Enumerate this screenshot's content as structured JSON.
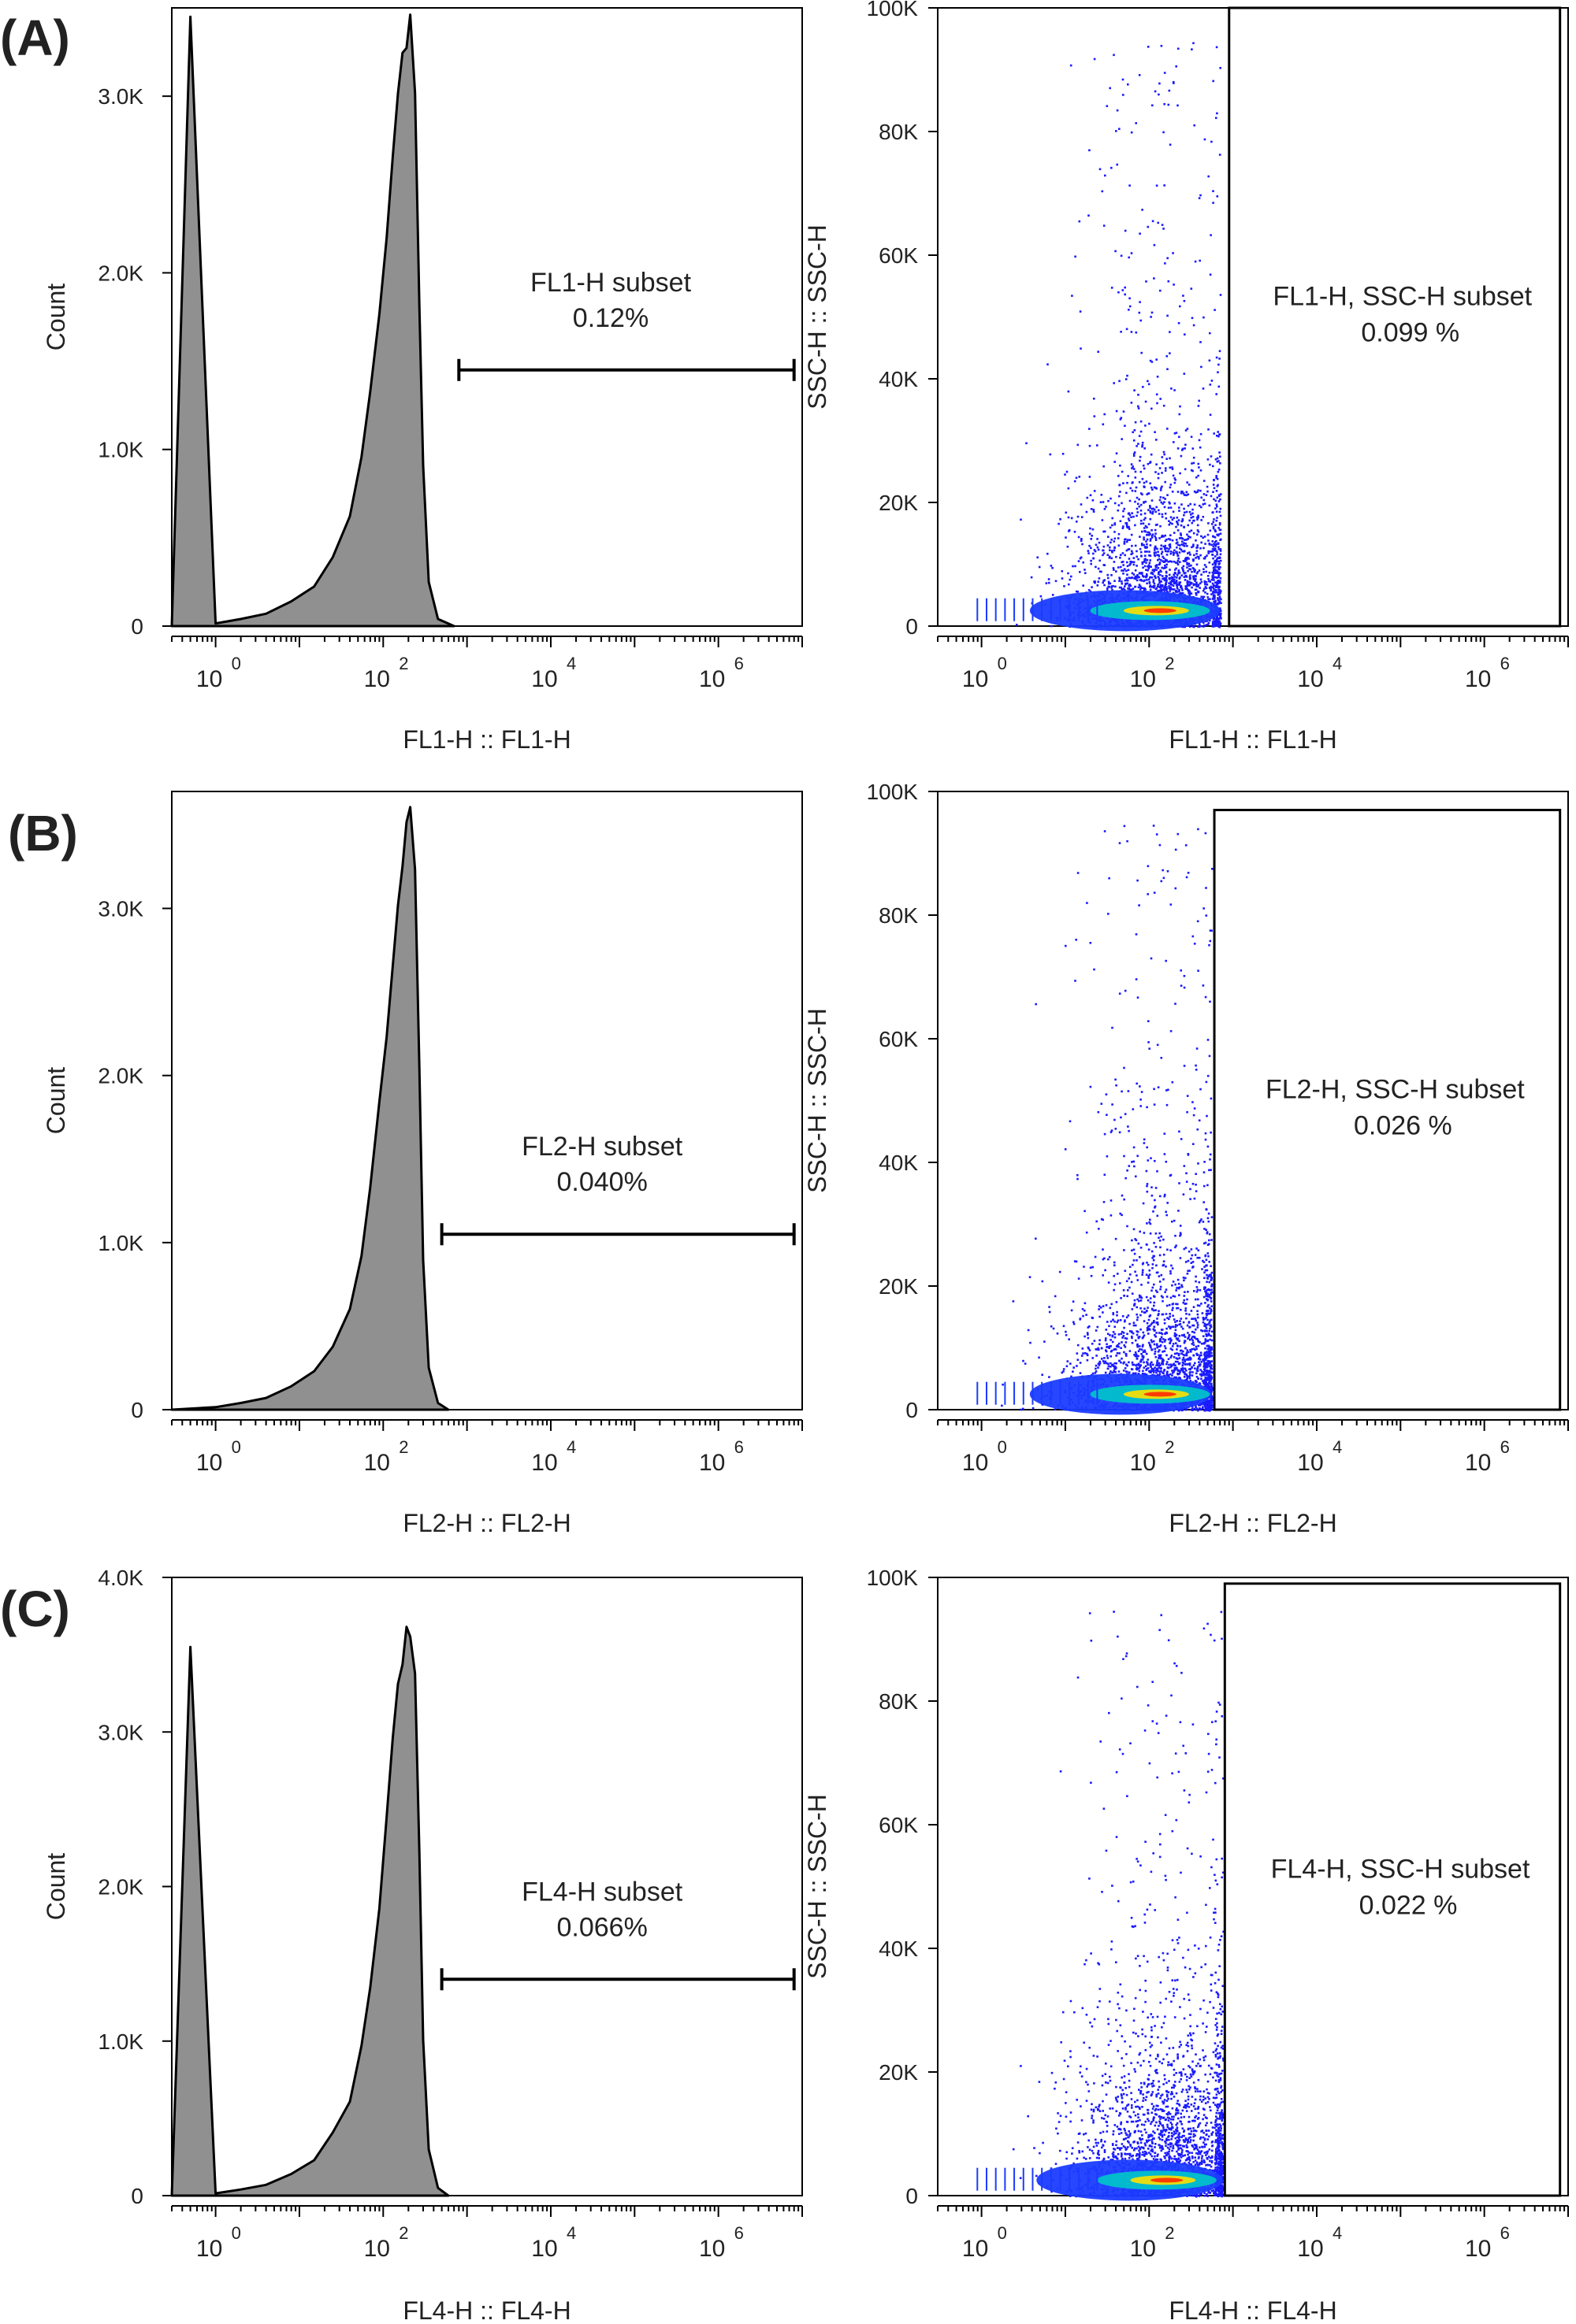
{
  "colors": {
    "histogram_fill": "#909090",
    "histogram_outline": "#000000",
    "scatter_point": "#1a1aff",
    "density_low": "#1b3cff",
    "density_mid": "#00c8c8",
    "density_high": "#ffe000",
    "density_peak": "#ff2a00",
    "frame": "#000000"
  },
  "chart_data": [
    {
      "panel": "(A)",
      "type": "area",
      "xlabel": "FL1-H :: FL1-H",
      "ylabel": "Count",
      "x_scale": "log10",
      "xlim": [
        0.3,
        10000000
      ],
      "ylim": [
        0,
        3500
      ],
      "yticks": [
        "0",
        "1.0K",
        "2.0K",
        "3.0K"
      ],
      "xticks": [
        {
          "base": "10",
          "exp": "0"
        },
        {
          "base": "10",
          "exp": "2"
        },
        {
          "base": "10",
          "exp": "4"
        },
        {
          "base": "10",
          "exp": "6"
        }
      ],
      "histogram": {
        "x": [
          0.5,
          1,
          2,
          4,
          8,
          15,
          25,
          40,
          55,
          70,
          90,
          110,
          130,
          150,
          170,
          190,
          210,
          240,
          270,
          300,
          350,
          450,
          700
        ],
        "y": [
          3450,
          15,
          40,
          70,
          140,
          230,
          400,
          620,
          950,
          1300,
          1800,
          2200,
          2650,
          3000,
          3200,
          3350,
          3420,
          2950,
          1850,
          900,
          250,
          40,
          0
        ]
      },
      "gate": {
        "name": "FL1-H subset",
        "percent": "0.12",
        "unit": "%",
        "range": [
          800,
          8000000
        ],
        "y": 1450
      }
    },
    {
      "panel": "(A)",
      "type": "scatter",
      "xlabel": "FL1-H :: FL1-H",
      "ylabel": "SSC-H :: SSC-H",
      "x_scale": "log10",
      "xlim": [
        0.3,
        10000000
      ],
      "ylim": [
        0,
        100000
      ],
      "yticks": [
        "0",
        "20K",
        "40K",
        "60K",
        "80K",
        "100K"
      ],
      "xticks": [
        {
          "base": "10",
          "exp": "0"
        },
        {
          "base": "10",
          "exp": "2"
        },
        {
          "base": "10",
          "exp": "4"
        },
        {
          "base": "10",
          "exp": "6"
        }
      ],
      "population": {
        "x_center": 150,
        "x_max": 700,
        "y_median": 6000
      },
      "gate": {
        "name": "FL1-H, SSC-H subset",
        "percent": "0.099",
        "unit": "%",
        "x_range": [
          900,
          8000000
        ],
        "y_range": [
          0,
          100000
        ]
      }
    },
    {
      "panel": "(B)",
      "type": "area",
      "xlabel": "FL2-H :: FL2-H",
      "ylabel": "Count",
      "x_scale": "log10",
      "xlim": [
        0.3,
        10000000
      ],
      "ylim": [
        0,
        3700
      ],
      "yticks": [
        "0",
        "1.0K",
        "2.0K",
        "3.0K"
      ],
      "xticks": [
        {
          "base": "10",
          "exp": "0"
        },
        {
          "base": "10",
          "exp": "2"
        },
        {
          "base": "10",
          "exp": "4"
        },
        {
          "base": "10",
          "exp": "6"
        }
      ],
      "histogram": {
        "x": [
          1,
          2,
          4,
          8,
          15,
          25,
          40,
          55,
          70,
          90,
          110,
          130,
          150,
          170,
          190,
          210,
          240,
          270,
          300,
          350,
          450,
          600
        ],
        "y": [
          15,
          40,
          70,
          140,
          230,
          380,
          600,
          920,
          1300,
          1800,
          2250,
          2700,
          3050,
          3300,
          3500,
          3620,
          3200,
          2000,
          900,
          250,
          40,
          0
        ]
      },
      "gate": {
        "name": "FL2-H subset",
        "percent": "0.040",
        "unit": "%",
        "range": [
          500,
          8000000
        ],
        "y": 1050
      }
    },
    {
      "panel": "(B)",
      "type": "scatter",
      "xlabel": "FL2-H :: FL2-H",
      "ylabel": "SSC-H :: SSC-H",
      "x_scale": "log10",
      "xlim": [
        0.3,
        10000000
      ],
      "ylim": [
        0,
        100000
      ],
      "yticks": [
        "0",
        "20K",
        "40K",
        "60K",
        "80K",
        "100K"
      ],
      "xticks": [
        {
          "base": "10",
          "exp": "0"
        },
        {
          "base": "10",
          "exp": "2"
        },
        {
          "base": "10",
          "exp": "4"
        },
        {
          "base": "10",
          "exp": "6"
        }
      ],
      "population": {
        "x_center": 150,
        "x_max": 550,
        "y_median": 6000
      },
      "gate": {
        "name": "FL2-H, SSC-H subset",
        "percent": "0.026",
        "unit": "%",
        "x_range": [
          600,
          8000000
        ],
        "y_range": [
          0,
          97000
        ]
      }
    },
    {
      "panel": "(C)",
      "type": "area",
      "xlabel": "FL4-H :: FL4-H",
      "ylabel": "Count",
      "x_scale": "log10",
      "xlim": [
        0.3,
        10000000
      ],
      "ylim": [
        0,
        4000
      ],
      "yticks": [
        "0",
        "1.0K",
        "2.0K",
        "3.0K",
        "4.0K"
      ],
      "xticks": [
        {
          "base": "10",
          "exp": "0"
        },
        {
          "base": "10",
          "exp": "2"
        },
        {
          "base": "10",
          "exp": "4"
        },
        {
          "base": "10",
          "exp": "6"
        }
      ],
      "histogram": {
        "x": [
          0.5,
          1,
          2,
          4,
          8,
          15,
          25,
          40,
          55,
          70,
          90,
          110,
          130,
          150,
          170,
          190,
          210,
          240,
          270,
          300,
          350,
          450,
          600
        ],
        "y": [
          3550,
          15,
          40,
          70,
          140,
          230,
          400,
          620,
          950,
          1350,
          1900,
          2450,
          2900,
          3250,
          3500,
          3650,
          3700,
          3300,
          2200,
          1000,
          300,
          50,
          0
        ]
      },
      "gate": {
        "name": "FL4-H subset",
        "percent": "0.066",
        "unit": "%",
        "range": [
          500,
          8000000
        ],
        "y": 1400
      }
    },
    {
      "panel": "(C)",
      "type": "scatter",
      "xlabel": "FL4-H :: FL4-H",
      "ylabel": "SSC-H :: SSC-H",
      "x_scale": "log10",
      "xlim": [
        0.3,
        10000000
      ],
      "ylim": [
        0,
        100000
      ],
      "yticks": [
        "0",
        "20K",
        "40K",
        "60K",
        "80K",
        "100K"
      ],
      "xticks": [
        {
          "base": "10",
          "exp": "0"
        },
        {
          "base": "10",
          "exp": "2"
        },
        {
          "base": "10",
          "exp": "4"
        },
        {
          "base": "10",
          "exp": "6"
        }
      ],
      "population": {
        "x_center": 180,
        "x_max": 750,
        "y_median": 6000
      },
      "gate": {
        "name": "FL4-H, SSC-H subset",
        "percent": "0.022",
        "unit": "%",
        "x_range": [
          800,
          8000000
        ],
        "y_range": [
          0,
          99000
        ]
      }
    }
  ]
}
